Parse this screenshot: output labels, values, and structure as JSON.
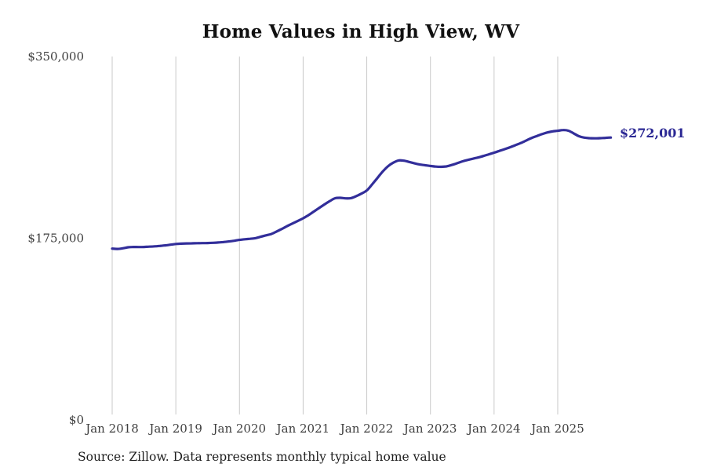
{
  "chart": {
    "title": "Home Values in High View, WV",
    "end_value_label": "$272,001",
    "colors": {
      "line": "#322e9a",
      "grid": "#c9c9c9",
      "axis_text": "#3e3e3e",
      "end_label": "#2b2894",
      "title_text": "#111111",
      "source_text": "#1e1e1e"
    }
  },
  "footer": {
    "source_note": "Source: Zillow. Data represents monthly typical home value"
  },
  "chart_data": {
    "type": "line",
    "title": "Home Values in High View, WV",
    "x_tick_labels": [
      "Jan 2018",
      "Jan 2019",
      "Jan 2020",
      "Jan 2021",
      "Jan 2022",
      "Jan 2023",
      "Jan 2024",
      "Jan 2025"
    ],
    "y_tick_labels": [
      "$0",
      "$175,000",
      "$350,000"
    ],
    "y_ticks": [
      0,
      175000,
      350000
    ],
    "ylim": [
      0,
      350000
    ],
    "grid": "vertical-only",
    "legend": "none",
    "x_start": "Jan 2018",
    "x_end": "Nov 2025",
    "x_interval": "monthly",
    "end_value": 272001,
    "series": [
      {
        "name": "Typical home value",
        "monthly_values": [
          165000,
          164700,
          165300,
          166300,
          166600,
          166500,
          166600,
          166900,
          167200,
          167600,
          168100,
          168800,
          169500,
          169800,
          170000,
          170100,
          170200,
          170300,
          170400,
          170600,
          170900,
          171300,
          171900,
          172600,
          173400,
          174000,
          174500,
          175100,
          176400,
          177800,
          179100,
          181500,
          184000,
          186700,
          189200,
          191700,
          194200,
          197200,
          200600,
          204100,
          207500,
          210700,
          213500,
          213900,
          213400,
          213600,
          215500,
          218000,
          221000,
          226800,
          233000,
          239200,
          244300,
          247800,
          249900,
          249700,
          248500,
          247100,
          246000,
          245300,
          244600,
          244000,
          243800,
          244200,
          245500,
          247200,
          249000,
          250400,
          251600,
          252800,
          254200,
          255800,
          257400,
          259100,
          260800,
          262600,
          264600,
          266600,
          269000,
          271400,
          273300,
          275200,
          276800,
          277900,
          278500,
          279200,
          278600,
          276000,
          273300,
          271900,
          271400,
          271200,
          271400,
          271700,
          272001
        ]
      }
    ]
  }
}
